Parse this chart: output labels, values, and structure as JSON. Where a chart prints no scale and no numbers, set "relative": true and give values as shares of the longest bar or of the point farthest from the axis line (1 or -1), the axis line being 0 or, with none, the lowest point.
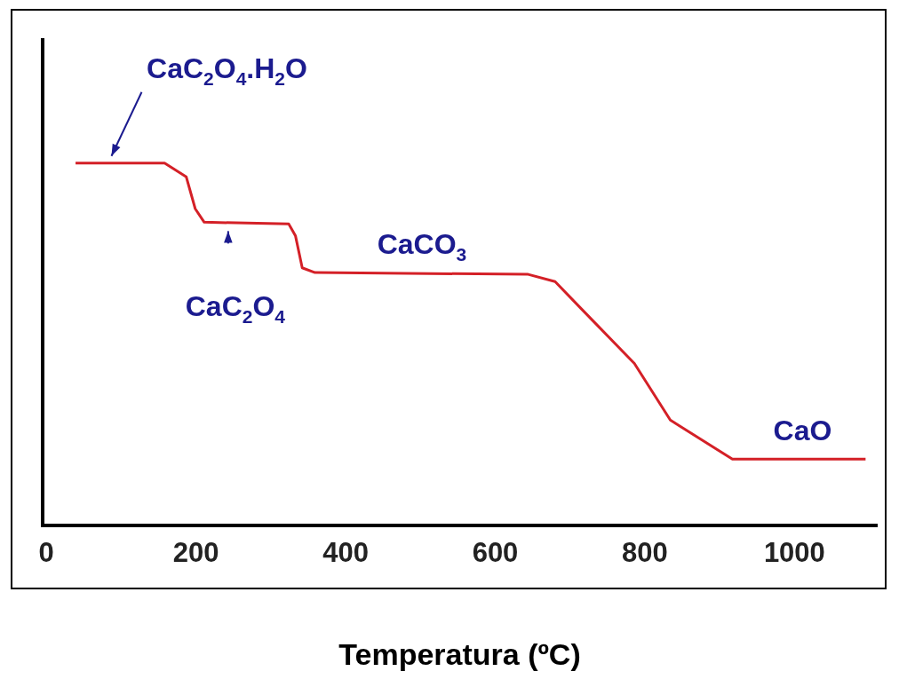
{
  "chart_data": {
    "type": "line",
    "xlabel": "Temperatura (ºC)",
    "relative": true,
    "xlim": [
      -5,
      1110
    ],
    "xticks": [
      0,
      200,
      400,
      600,
      800,
      1000
    ],
    "grid": false,
    "legend": false,
    "marker": "none",
    "line_style": "solid",
    "tick_labels": "x",
    "series": [
      {
        "color": "#d42027",
        "x": [
          39,
          158,
          187,
          199,
          211,
          324,
          333,
          342,
          359,
          644,
          680,
          715,
          786,
          834,
          917,
          1095
        ],
        "values": [
          1,
          1,
          0.962,
          0.874,
          0.837,
          0.832,
          0.799,
          0.711,
          0.698,
          0.693,
          0.673,
          0.598,
          0.447,
          0.291,
          0.183,
          0.183
        ]
      }
    ],
    "annotations": [
      {
        "text": "CaC$_{2}$O$_{4}$.H$_{2}$O",
        "x": 87,
        "y": 1
      },
      {
        "text": "CaC$_{2}$O$_{4}$",
        "x": 243,
        "y": 0.832
      },
      {
        "text": "CaCO$_{3}$",
        "x": 502,
        "y": 0.693
      },
      {
        "text": "CaO",
        "x": 1006,
        "y": 0.183
      }
    ]
  }
}
